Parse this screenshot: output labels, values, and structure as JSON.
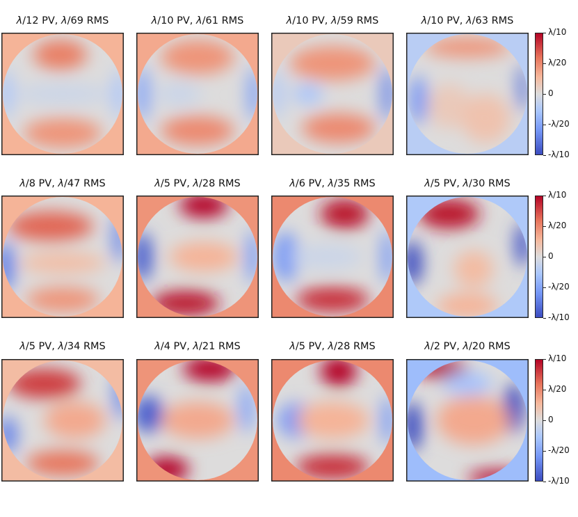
{
  "chart_data": {
    "type": "heatmap",
    "layout": "3x4 grid of circular wavefront maps with one colorbar per row",
    "colormap": "coolwarm",
    "colorbar": {
      "ticks": [
        "λ/10",
        "λ/20",
        "0",
        "-λ/20",
        "-λ/10"
      ],
      "range_waves": [
        -0.1,
        0.1
      ]
    },
    "panels": [
      {
        "title_parts": [
          "λ",
          "/12 PV, ",
          "λ",
          "/69 RMS"
        ],
        "bg_level": 0.3,
        "blobs": [
          [
            0.48,
            0.18,
            0.22,
            0.12,
            0.55
          ],
          [
            0.5,
            0.82,
            0.32,
            0.12,
            0.45
          ],
          [
            0.5,
            0.5,
            0.4,
            0.08,
            -0.1
          ],
          [
            0.04,
            0.5,
            0.05,
            0.2,
            -0.3
          ],
          [
            0.96,
            0.5,
            0.05,
            0.2,
            -0.3
          ]
        ]
      },
      {
        "title_parts": [
          "λ",
          "/10 PV, ",
          "λ",
          "/61 RMS"
        ],
        "bg_level": 0.35,
        "blobs": [
          [
            0.5,
            0.2,
            0.3,
            0.14,
            0.45
          ],
          [
            0.5,
            0.8,
            0.3,
            0.12,
            0.5
          ],
          [
            0.05,
            0.5,
            0.06,
            0.22,
            -0.5
          ],
          [
            0.96,
            0.5,
            0.05,
            0.22,
            -0.55
          ],
          [
            0.35,
            0.5,
            0.18,
            0.1,
            -0.1
          ]
        ]
      },
      {
        "title_parts": [
          "λ",
          "/10 PV, ",
          "λ",
          "/59 RMS"
        ],
        "bg_level": 0.15,
        "blobs": [
          [
            0.5,
            0.25,
            0.35,
            0.14,
            0.45
          ],
          [
            0.55,
            0.78,
            0.3,
            0.12,
            0.5
          ],
          [
            0.3,
            0.5,
            0.12,
            0.08,
            -0.3
          ],
          [
            0.95,
            0.5,
            0.05,
            0.22,
            -0.7
          ],
          [
            0.05,
            0.5,
            0.04,
            0.2,
            -0.3
          ]
        ]
      },
      {
        "title_parts": [
          "λ",
          "/10 PV, ",
          "λ",
          "/63 RMS"
        ],
        "bg_level": -0.2,
        "blobs": [
          [
            0.5,
            0.12,
            0.35,
            0.08,
            0.45
          ],
          [
            0.1,
            0.55,
            0.07,
            0.2,
            -0.6
          ],
          [
            0.95,
            0.45,
            0.04,
            0.2,
            -0.8
          ],
          [
            0.35,
            0.6,
            0.18,
            0.18,
            0.15
          ],
          [
            0.65,
            0.7,
            0.2,
            0.2,
            0.2
          ]
        ]
      },
      {
        "title_parts": [
          "λ",
          "/8 PV, ",
          "λ",
          "/47 RMS"
        ],
        "bg_level": 0.3,
        "blobs": [
          [
            0.4,
            0.25,
            0.35,
            0.12,
            0.65
          ],
          [
            0.5,
            0.85,
            0.3,
            0.1,
            0.45
          ],
          [
            0.03,
            0.58,
            0.08,
            0.2,
            -0.7
          ],
          [
            0.96,
            0.35,
            0.05,
            0.2,
            -0.7
          ],
          [
            0.5,
            0.55,
            0.35,
            0.08,
            0.25
          ]
        ]
      },
      {
        "title_parts": [
          "λ",
          "/5 PV, ",
          "λ",
          "/28 RMS"
        ],
        "bg_level": 0.45,
        "blobs": [
          [
            0.55,
            0.08,
            0.2,
            0.1,
            1.0
          ],
          [
            0.4,
            0.88,
            0.28,
            0.1,
            0.95
          ],
          [
            0.05,
            0.5,
            0.08,
            0.2,
            -0.9
          ],
          [
            0.95,
            0.5,
            0.05,
            0.22,
            -0.6
          ],
          [
            0.55,
            0.5,
            0.28,
            0.12,
            0.3
          ]
        ]
      },
      {
        "title_parts": [
          "λ",
          "/6 PV, ",
          "λ",
          "/35 RMS"
        ],
        "bg_level": 0.5,
        "blobs": [
          [
            0.6,
            0.15,
            0.2,
            0.12,
            0.95
          ],
          [
            0.5,
            0.85,
            0.3,
            0.1,
            0.85
          ],
          [
            0.12,
            0.5,
            0.1,
            0.2,
            -0.6
          ],
          [
            0.95,
            0.5,
            0.05,
            0.22,
            -0.6
          ],
          [
            0.45,
            0.5,
            0.3,
            0.1,
            -0.1
          ]
        ]
      },
      {
        "title_parts": [
          "λ",
          "/5 PV, ",
          "λ",
          "/30 RMS"
        ],
        "bg_level": -0.25,
        "blobs": [
          [
            0.35,
            0.15,
            0.25,
            0.12,
            0.95
          ],
          [
            0.05,
            0.55,
            0.08,
            0.18,
            -1.0
          ],
          [
            0.95,
            0.4,
            0.06,
            0.18,
            -0.95
          ],
          [
            0.55,
            0.6,
            0.16,
            0.15,
            0.25
          ],
          [
            0.5,
            0.9,
            0.25,
            0.1,
            0.3
          ]
        ]
      },
      {
        "title_parts": [
          "λ",
          "/5 PV, ",
          "λ",
          "/34 RMS"
        ],
        "bg_level": 0.25,
        "blobs": [
          [
            0.35,
            0.2,
            0.3,
            0.12,
            0.8
          ],
          [
            0.5,
            0.85,
            0.3,
            0.1,
            0.6
          ],
          [
            0.05,
            0.62,
            0.08,
            0.15,
            -0.7
          ],
          [
            0.97,
            0.3,
            0.05,
            0.2,
            -0.7
          ],
          [
            0.6,
            0.5,
            0.25,
            0.15,
            0.35
          ]
        ]
      },
      {
        "title_parts": [
          "λ",
          "/4 PV, ",
          "λ",
          "/21 RMS"
        ],
        "bg_level": 0.45,
        "blobs": [
          [
            0.6,
            0.08,
            0.22,
            0.1,
            1.1
          ],
          [
            0.25,
            0.9,
            0.18,
            0.1,
            1.1
          ],
          [
            0.1,
            0.45,
            0.12,
            0.15,
            -0.9
          ],
          [
            0.9,
            0.4,
            0.06,
            0.2,
            -0.5
          ],
          [
            0.5,
            0.5,
            0.3,
            0.15,
            0.35
          ]
        ]
      },
      {
        "title_parts": [
          "λ",
          "/5 PV, ",
          "λ",
          "/28 RMS"
        ],
        "bg_level": 0.5,
        "blobs": [
          [
            0.55,
            0.1,
            0.15,
            0.12,
            1.2
          ],
          [
            0.5,
            0.88,
            0.3,
            0.1,
            0.85
          ],
          [
            0.2,
            0.5,
            0.14,
            0.14,
            -0.6
          ],
          [
            0.95,
            0.5,
            0.05,
            0.2,
            -0.6
          ],
          [
            0.5,
            0.5,
            0.3,
            0.15,
            0.3
          ]
        ]
      },
      {
        "title_parts": [
          "λ",
          "/2 PV, ",
          "λ",
          "/20 RMS"
        ],
        "bg_level": -0.35,
        "blobs": [
          [
            0.3,
            0.08,
            0.2,
            0.08,
            1.2
          ],
          [
            0.75,
            0.97,
            0.25,
            0.06,
            1.1
          ],
          [
            0.05,
            0.55,
            0.08,
            0.2,
            -1.1
          ],
          [
            0.88,
            0.4,
            0.08,
            0.2,
            -1.1
          ],
          [
            0.55,
            0.5,
            0.3,
            0.2,
            0.35
          ],
          [
            0.5,
            0.2,
            0.2,
            0.1,
            -0.3
          ]
        ]
      }
    ]
  }
}
